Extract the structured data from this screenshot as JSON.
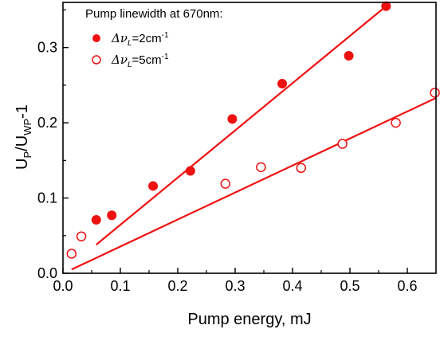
{
  "chart_data": {
    "type": "scatter",
    "title": "",
    "xlabel": "Pump energy, mJ",
    "ylabel": {
      "main": "U",
      "sub1": "P",
      "mid": "/U",
      "sub2": "WP",
      "tail": "-1"
    },
    "xlim": [
      0.0,
      0.65
    ],
    "ylim": [
      0.0,
      0.36
    ],
    "xticks": [
      "0.0",
      "0.1",
      "0.2",
      "0.3",
      "0.4",
      "0.5",
      "0.6"
    ],
    "yticks": [
      "0.0",
      "0.1",
      "0.2",
      "0.3"
    ],
    "grid": false,
    "legend": {
      "placement": "top-left",
      "title": "Pump linewidth at 670nm:",
      "entries": [
        {
          "prefix": "Δν",
          "sub": "L",
          "eq": "=2cm",
          "sup": "-1"
        },
        {
          "prefix": "Δν",
          "sub": "L",
          "eq": "=5cm",
          "sup": "-1"
        }
      ]
    },
    "series": [
      {
        "marker": "filled-circle",
        "color": "#ee1111",
        "points": [
          [
            0.058,
            0.071
          ],
          [
            0.085,
            0.077
          ],
          [
            0.157,
            0.116
          ],
          [
            0.222,
            0.136
          ],
          [
            0.295,
            0.205
          ],
          [
            0.382,
            0.252
          ],
          [
            0.498,
            0.289
          ],
          [
            0.563,
            0.355
          ]
        ],
        "fit": [
          [
            0.058,
            0.038
          ],
          [
            0.563,
            0.355
          ]
        ]
      },
      {
        "marker": "open-circle",
        "color": "#ee1111",
        "points": [
          [
            0.015,
            0.026
          ],
          [
            0.032,
            0.049
          ],
          [
            0.283,
            0.119
          ],
          [
            0.345,
            0.141
          ],
          [
            0.415,
            0.14
          ],
          [
            0.487,
            0.172
          ],
          [
            0.58,
            0.2
          ],
          [
            0.648,
            0.24
          ]
        ],
        "fit": [
          [
            0.015,
            0.005
          ],
          [
            0.65,
            0.233
          ]
        ]
      }
    ]
  }
}
